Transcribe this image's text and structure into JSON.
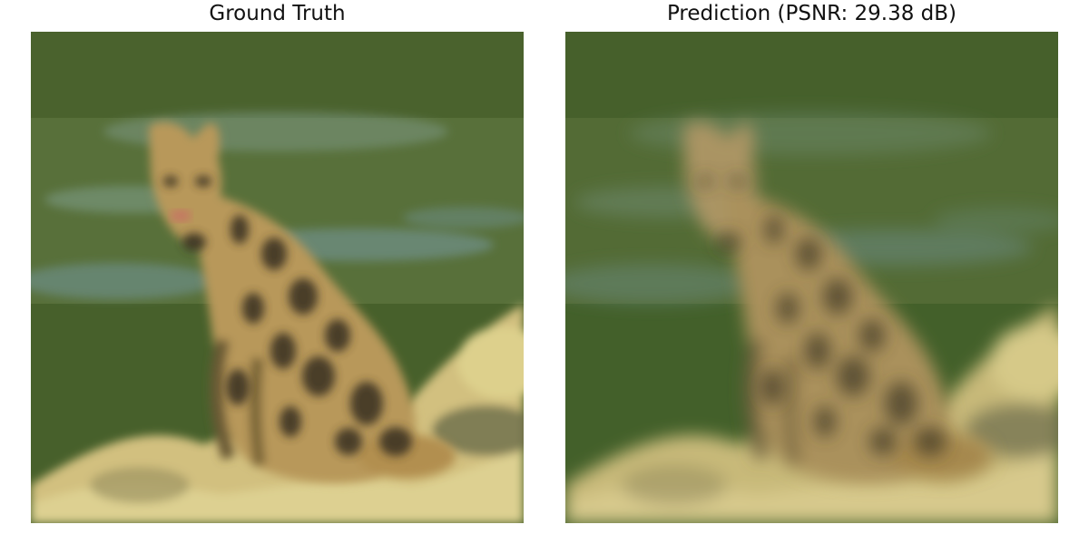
{
  "panels": [
    {
      "title": "Ground Truth"
    },
    {
      "title": "Prediction (PSNR: 29.38 dB)"
    }
  ],
  "scene_colors": {
    "background_dark": "#3f5526",
    "background_mid": "#58703a",
    "water_blue": "#6f8f86",
    "leopard_tan": "#b8985a",
    "leopard_spot": "#3b3220",
    "rock_light": "#d8cc8a",
    "rock_shadow": "#8b8659"
  }
}
